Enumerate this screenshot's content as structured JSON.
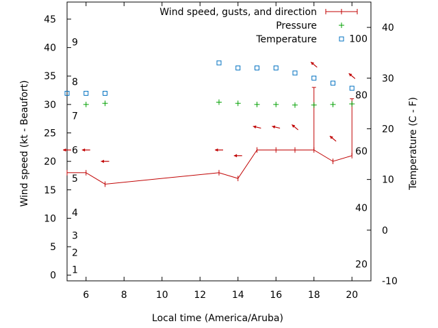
{
  "chart_data": {
    "type": "line",
    "xlabel": "Local time (America/Aruba)",
    "ylabel": "Wind speed (kt - Beaufort)",
    "y2label": "Temperature (C - F)",
    "xlim": [
      5,
      21
    ],
    "ylim": [
      -1,
      48
    ],
    "y2lim": [
      -10,
      45
    ],
    "x_ticks": [
      6,
      8,
      10,
      12,
      14,
      16,
      18,
      20
    ],
    "y_ticks": [
      0,
      5,
      10,
      15,
      20,
      25,
      30,
      35,
      40,
      45
    ],
    "y2_ticks": [
      -10,
      0,
      10,
      20,
      30,
      40
    ],
    "beaufort_labels": [
      {
        "label": "1",
        "kt": 1
      },
      {
        "label": "2",
        "kt": 4
      },
      {
        "label": "3",
        "kt": 7
      },
      {
        "label": "4",
        "kt": 11
      },
      {
        "label": "5",
        "kt": 17
      },
      {
        "label": "6",
        "kt": 22
      },
      {
        "label": "7",
        "kt": 28
      },
      {
        "label": "8",
        "kt": 34
      },
      {
        "label": "9",
        "kt": 41
      }
    ],
    "fahrenheit_labels": [
      {
        "label": "20",
        "celsius": -6.7
      },
      {
        "label": "40",
        "celsius": 4.4
      },
      {
        "label": "60",
        "celsius": 15.6
      },
      {
        "label": "80",
        "celsius": 26.7
      },
      {
        "label": "100",
        "celsius": 37.8
      }
    ],
    "legend": {
      "position": "top-right",
      "entries": [
        "Wind speed, gusts, and direction",
        "Pressure",
        "Temperature"
      ]
    },
    "series": [
      {
        "name": "Wind speed, gusts, and direction",
        "color": "#c00000",
        "x": [
          5,
          6,
          7,
          13,
          14,
          15,
          16,
          17,
          18,
          19,
          20
        ],
        "values": [
          18,
          18,
          16,
          18,
          17,
          22,
          22,
          22,
          22,
          20,
          21
        ],
        "gusts": [
          null,
          null,
          null,
          null,
          null,
          null,
          null,
          null,
          33,
          null,
          31
        ],
        "direction_arrows": [
          {
            "x": 5,
            "y": 22,
            "dir": "W"
          },
          {
            "x": 6,
            "y": 22,
            "dir": "W"
          },
          {
            "x": 7,
            "y": 20,
            "dir": "W"
          },
          {
            "x": 13,
            "y": 22,
            "dir": "W"
          },
          {
            "x": 14,
            "y": 21,
            "dir": "W"
          },
          {
            "x": 15,
            "y": 26,
            "dir": "WSW"
          },
          {
            "x": 16,
            "y": 26,
            "dir": "WSW"
          },
          {
            "x": 17,
            "y": 26,
            "dir": "SW"
          },
          {
            "x": 18,
            "y": 37,
            "dir": "SW"
          },
          {
            "x": 19,
            "y": 24,
            "dir": "SW"
          },
          {
            "x": 20,
            "y": 35,
            "dir": "SW"
          }
        ]
      },
      {
        "name": "Pressure",
        "color": "#00a000",
        "marker": "+",
        "x": [
          6,
          7,
          13,
          14,
          15,
          16,
          17,
          18,
          19,
          20
        ],
        "values": [
          30,
          30.2,
          30.4,
          30.2,
          30,
          30,
          29.9,
          29.9,
          30,
          30.1
        ]
      },
      {
        "name": "Temperature",
        "color": "#0070c0",
        "marker": "square",
        "axis": "y2",
        "x": [
          5,
          6,
          7,
          13,
          14,
          15,
          16,
          17,
          18,
          19,
          20
        ],
        "values": [
          27,
          27,
          27,
          33,
          32,
          32,
          32,
          31,
          30,
          29,
          28
        ]
      }
    ]
  }
}
